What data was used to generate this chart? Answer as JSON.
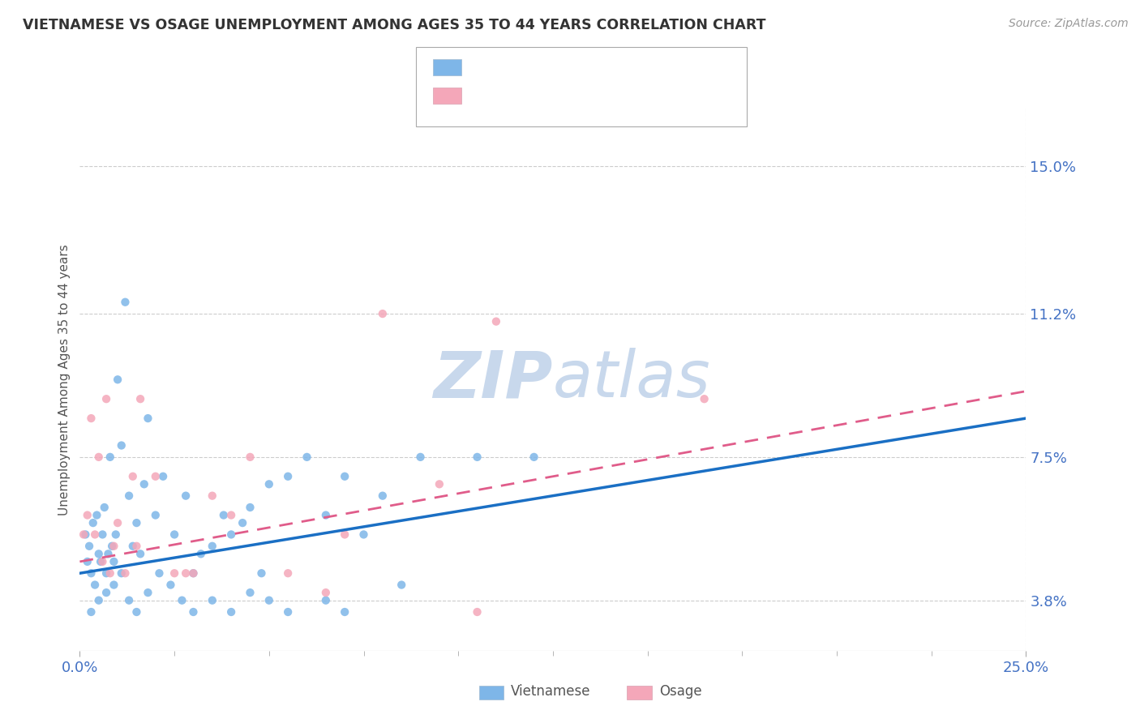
{
  "title": "VIETNAMESE VS OSAGE UNEMPLOYMENT AMONG AGES 35 TO 44 YEARS CORRELATION CHART",
  "source": "Source: ZipAtlas.com",
  "ylabel_label": "Unemployment Among Ages 35 to 44 years",
  "xlabel_ticks": [
    "0.0%",
    "25.0%"
  ],
  "ylabel_ticks": [
    "3.8%",
    "7.5%",
    "11.2%",
    "15.0%"
  ],
  "ylabel_values": [
    3.8,
    7.5,
    11.2,
    15.0
  ],
  "xlim": [
    0.0,
    25.0
  ],
  "ylim": [
    2.5,
    16.5
  ],
  "color_vietnamese": "#7EB6E8",
  "color_osage": "#F4A7B9",
  "color_trendline_vietnamese": "#1A6FC4",
  "color_trendline_osage": "#E05C8A",
  "color_title": "#333333",
  "color_axis_labels": "#4472C4",
  "color_legend_rn": "#4472C4",
  "watermark_line1": "ZIP",
  "watermark_line2": "atlas",
  "watermark_color": "#C8D8EC",
  "background_color": "#FFFFFF",
  "gridline_color": "#CCCCCC",
  "viet_trendline_x0": 0.0,
  "viet_trendline_y0": 4.5,
  "viet_trendline_x1": 25.0,
  "viet_trendline_y1": 8.5,
  "osage_trendline_x0": 0.0,
  "osage_trendline_y0": 4.8,
  "osage_trendline_x1": 25.0,
  "osage_trendline_y1": 9.2,
  "vietnamese_x": [
    0.15,
    0.2,
    0.25,
    0.3,
    0.35,
    0.4,
    0.45,
    0.5,
    0.55,
    0.6,
    0.65,
    0.7,
    0.75,
    0.8,
    0.85,
    0.9,
    0.95,
    1.0,
    1.1,
    1.2,
    1.3,
    1.4,
    1.5,
    1.6,
    1.7,
    1.8,
    2.0,
    2.2,
    2.5,
    2.8,
    3.0,
    3.2,
    3.5,
    3.8,
    4.0,
    4.3,
    4.5,
    4.8,
    5.0,
    5.5,
    6.0,
    6.5,
    7.0,
    7.5,
    8.0,
    9.0,
    10.5,
    0.3,
    0.5,
    0.7,
    0.9,
    1.1,
    1.3,
    1.5,
    1.8,
    2.1,
    2.4,
    2.7,
    3.0,
    3.5,
    4.0,
    4.5,
    5.0,
    5.5,
    6.5,
    7.0,
    8.5,
    12.0
  ],
  "vietnamese_y": [
    5.5,
    4.8,
    5.2,
    4.5,
    5.8,
    4.2,
    6.0,
    5.0,
    4.8,
    5.5,
    6.2,
    4.5,
    5.0,
    7.5,
    5.2,
    4.8,
    5.5,
    9.5,
    7.8,
    11.5,
    6.5,
    5.2,
    5.8,
    5.0,
    6.8,
    8.5,
    6.0,
    7.0,
    5.5,
    6.5,
    4.5,
    5.0,
    5.2,
    6.0,
    5.5,
    5.8,
    6.2,
    4.5,
    6.8,
    7.0,
    7.5,
    6.0,
    7.0,
    5.5,
    6.5,
    7.5,
    7.5,
    3.5,
    3.8,
    4.0,
    4.2,
    4.5,
    3.8,
    3.5,
    4.0,
    4.5,
    4.2,
    3.8,
    3.5,
    3.8,
    3.5,
    4.0,
    3.8,
    3.5,
    3.8,
    3.5,
    4.2,
    7.5
  ],
  "osage_x": [
    0.1,
    0.2,
    0.3,
    0.4,
    0.5,
    0.6,
    0.7,
    0.8,
    0.9,
    1.0,
    1.2,
    1.4,
    1.6,
    2.0,
    2.5,
    3.0,
    3.5,
    4.5,
    5.5,
    7.0,
    8.0,
    9.5,
    11.0,
    1.5,
    2.8,
    4.0,
    6.5,
    10.5,
    16.5
  ],
  "osage_y": [
    5.5,
    6.0,
    8.5,
    5.5,
    7.5,
    4.8,
    9.0,
    4.5,
    5.2,
    5.8,
    4.5,
    7.0,
    9.0,
    7.0,
    4.5,
    4.5,
    6.5,
    7.5,
    4.5,
    5.5,
    11.2,
    6.8,
    11.0,
    5.2,
    4.5,
    6.0,
    4.0,
    3.5,
    9.0
  ]
}
